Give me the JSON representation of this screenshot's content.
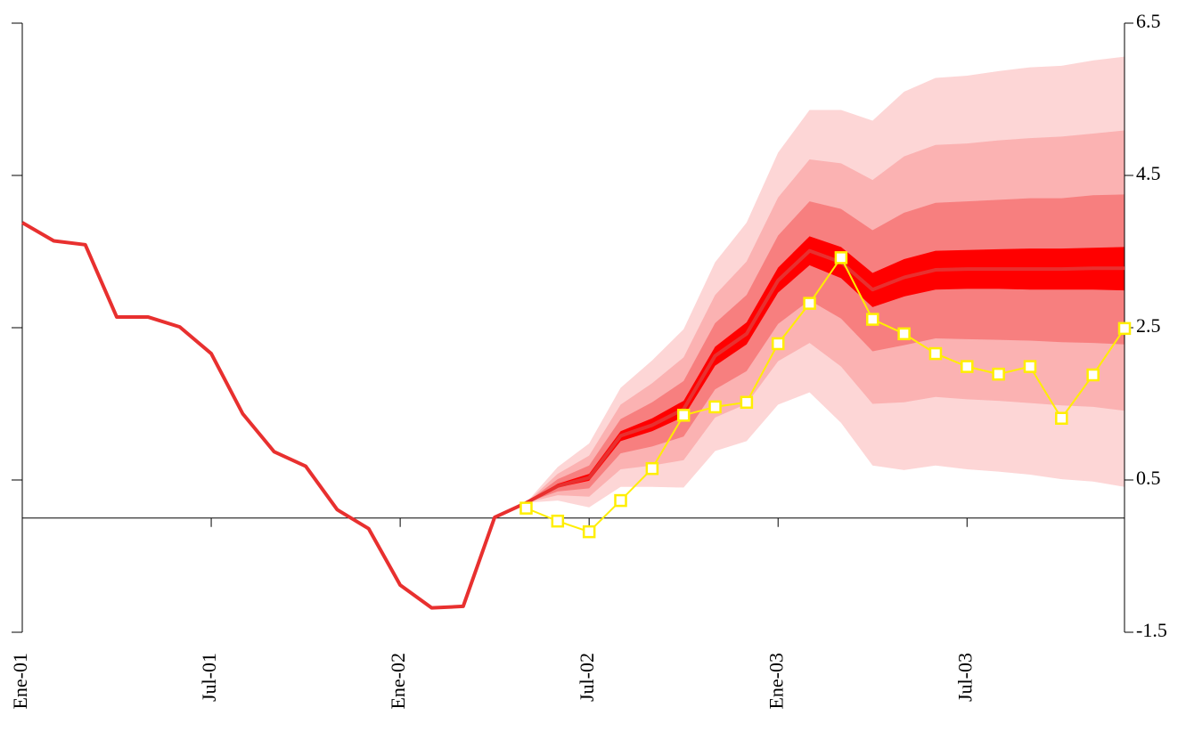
{
  "chart_data": {
    "type": "fan",
    "categories": [
      "Ene-01",
      null,
      null,
      null,
      null,
      null,
      "Jul-01",
      null,
      null,
      null,
      null,
      null,
      "Ene-02",
      null,
      null,
      null,
      null,
      null,
      "Jul-02",
      null,
      null,
      null,
      null,
      null,
      "Ene-03",
      null,
      null,
      null,
      null,
      null,
      "Jul-03",
      null,
      null,
      null,
      null,
      null
    ],
    "ylim": [
      -1.5,
      6.5
    ],
    "yticks": [
      -1.5,
      0.5,
      2.5,
      4.5,
      6.5
    ],
    "y_axis_side": "right",
    "bands": [
      {
        "color": "#fdd6d6",
        "upper": [
          null,
          null,
          null,
          null,
          null,
          null,
          null,
          null,
          null,
          null,
          null,
          null,
          null,
          null,
          null,
          null,
          0.2,
          0.67,
          0.98,
          1.71,
          2.07,
          2.48,
          3.36,
          3.88,
          4.8,
          5.36,
          5.36,
          5.22,
          5.6,
          5.78,
          5.81,
          5.87,
          5.92,
          5.94,
          6.01,
          6.06
        ],
        "lower": [
          null,
          null,
          null,
          null,
          null,
          null,
          null,
          null,
          null,
          null,
          null,
          null,
          null,
          null,
          null,
          null,
          0.2,
          0.23,
          0.14,
          0.41,
          0.41,
          0.4,
          0.88,
          1.01,
          1.49,
          1.65,
          1.25,
          0.69,
          0.63,
          0.69,
          0.64,
          0.61,
          0.57,
          0.51,
          0.48,
          0.41
        ]
      },
      {
        "color": "#fbb2b2",
        "upper": [
          null,
          null,
          null,
          null,
          null,
          null,
          null,
          null,
          null,
          null,
          null,
          null,
          null,
          null,
          null,
          null,
          0.2,
          0.58,
          0.82,
          1.49,
          1.77,
          2.11,
          2.93,
          3.37,
          4.21,
          4.71,
          4.66,
          4.44,
          4.75,
          4.9,
          4.92,
          4.96,
          4.99,
          5.01,
          5.05,
          5.09
        ],
        "lower": [
          null,
          null,
          null,
          null,
          null,
          null,
          null,
          null,
          null,
          null,
          null,
          null,
          null,
          null,
          null,
          null,
          0.2,
          0.3,
          0.28,
          0.64,
          0.69,
          0.76,
          1.32,
          1.5,
          2.06,
          2.3,
          1.99,
          1.5,
          1.52,
          1.59,
          1.56,
          1.54,
          1.51,
          1.48,
          1.46,
          1.41
        ]
      },
      {
        "color": "#f77f7f",
        "upper": [
          null,
          null,
          null,
          null,
          null,
          null,
          null,
          null,
          null,
          null,
          null,
          null,
          null,
          null,
          null,
          null,
          0.2,
          0.51,
          0.69,
          1.3,
          1.52,
          1.8,
          2.56,
          2.93,
          3.71,
          4.16,
          4.06,
          3.78,
          4.01,
          4.14,
          4.16,
          4.18,
          4.2,
          4.2,
          4.24,
          4.25
        ],
        "lower": [
          null,
          null,
          null,
          null,
          null,
          null,
          null,
          null,
          null,
          null,
          null,
          null,
          null,
          null,
          null,
          null,
          0.2,
          0.35,
          0.39,
          0.85,
          0.94,
          1.07,
          1.69,
          1.93,
          2.55,
          2.86,
          2.62,
          2.19,
          2.27,
          2.36,
          2.35,
          2.34,
          2.33,
          2.31,
          2.3,
          2.28
        ]
      },
      {
        "color": "#ff0000",
        "upper": [
          null,
          null,
          null,
          null,
          null,
          null,
          null,
          null,
          null,
          null,
          null,
          null,
          null,
          null,
          null,
          null,
          0.2,
          0.45,
          0.58,
          1.14,
          1.31,
          1.54,
          2.25,
          2.57,
          3.29,
          3.7,
          3.56,
          3.22,
          3.4,
          3.51,
          3.52,
          3.53,
          3.54,
          3.54,
          3.55,
          3.56
        ],
        "lower": [
          null,
          null,
          null,
          null,
          null,
          null,
          null,
          null,
          null,
          null,
          null,
          null,
          null,
          null,
          null,
          null,
          0.2,
          0.4,
          0.49,
          1.01,
          1.14,
          1.33,
          2.0,
          2.28,
          2.96,
          3.32,
          3.15,
          2.77,
          2.91,
          3.0,
          3.01,
          3.01,
          3.0,
          3.0,
          3.0,
          2.99
        ]
      }
    ],
    "series": [
      {
        "color": "#e8302f",
        "marker": false,
        "values": [
          3.88,
          3.64,
          3.59,
          2.64,
          2.64,
          2.51,
          2.16,
          1.37,
          0.87,
          0.68,
          0.11,
          -0.14,
          -0.88,
          -1.18,
          -1.16,
          0.01,
          0.2,
          0.42,
          0.53,
          1.08,
          1.22,
          1.43,
          2.13,
          2.42,
          3.12,
          3.51,
          3.36,
          3.0,
          3.16,
          3.26,
          3.27,
          3.27,
          3.27,
          3.27,
          3.28,
          3.28
        ]
      },
      {
        "color": "#ffee00",
        "marker": true,
        "values": [
          null,
          null,
          null,
          null,
          null,
          null,
          null,
          null,
          null,
          null,
          null,
          null,
          null,
          null,
          null,
          null,
          0.13,
          -0.04,
          -0.18,
          0.23,
          0.65,
          1.35,
          1.46,
          1.52,
          2.29,
          2.82,
          3.42,
          2.61,
          2.42,
          2.16,
          1.99,
          1.89,
          1.99,
          1.31,
          1.88,
          2.49
        ]
      }
    ]
  }
}
